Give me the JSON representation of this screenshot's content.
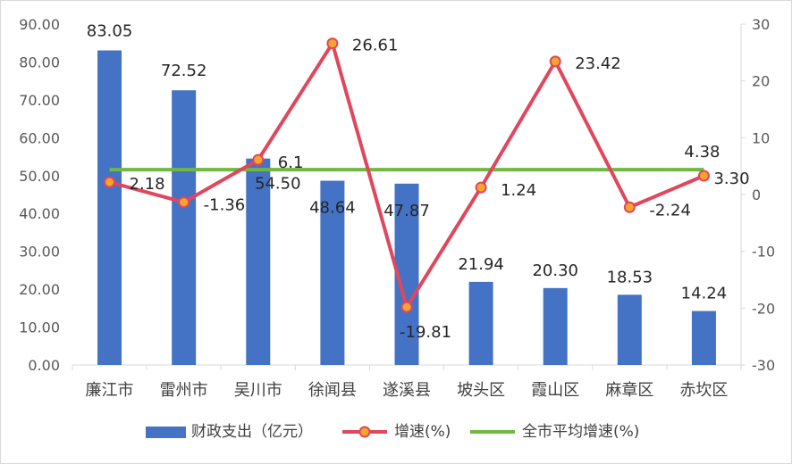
{
  "chart_data": {
    "type": "bar",
    "categories": [
      "廉江市",
      "雷州市",
      "吴川市",
      "徐闻县",
      "遂溪县",
      "坡头区",
      "霞山区",
      "麻章区",
      "赤坎区"
    ],
    "series": [
      {
        "name": "财政支出（亿元）",
        "type": "bar",
        "axis": "left",
        "values": [
          83.05,
          72.52,
          54.5,
          48.64,
          47.87,
          21.94,
          20.3,
          18.53,
          14.24
        ],
        "labels": [
          "83.05",
          "72.52",
          "54.50",
          "48.64",
          "47.87",
          "21.94",
          "20.30",
          "18.53",
          "14.24"
        ],
        "color": "#4472c4"
      },
      {
        "name": "增速(%)",
        "type": "line",
        "axis": "right",
        "values": [
          2.18,
          -1.36,
          6.1,
          26.61,
          -19.81,
          1.24,
          23.42,
          -2.24,
          3.3
        ],
        "labels": [
          "2.18",
          "-1.36",
          "6.1",
          "26.61",
          "-19.81",
          "1.24",
          "23.42",
          "-2.24",
          "3.30"
        ],
        "color": "#e0475c",
        "marker_fill": "#f4a52b"
      },
      {
        "name": "全市平均增速(%)",
        "type": "line",
        "axis": "right",
        "values": [
          4.38,
          4.38,
          4.38,
          4.38,
          4.38,
          4.38,
          4.38,
          4.38,
          4.38
        ],
        "label": "4.38",
        "color": "#70b83f"
      }
    ],
    "y_left": {
      "range": [
        0,
        90
      ],
      "ticks": [
        "0.00",
        "10.00",
        "20.00",
        "30.00",
        "40.00",
        "50.00",
        "60.00",
        "70.00",
        "80.00",
        "90.00"
      ]
    },
    "y_right": {
      "range": [
        -30,
        30
      ],
      "ticks": [
        "-30",
        "-20",
        "-10",
        "0",
        "10",
        "20",
        "30"
      ]
    },
    "grid": false,
    "legend_position": "bottom"
  }
}
